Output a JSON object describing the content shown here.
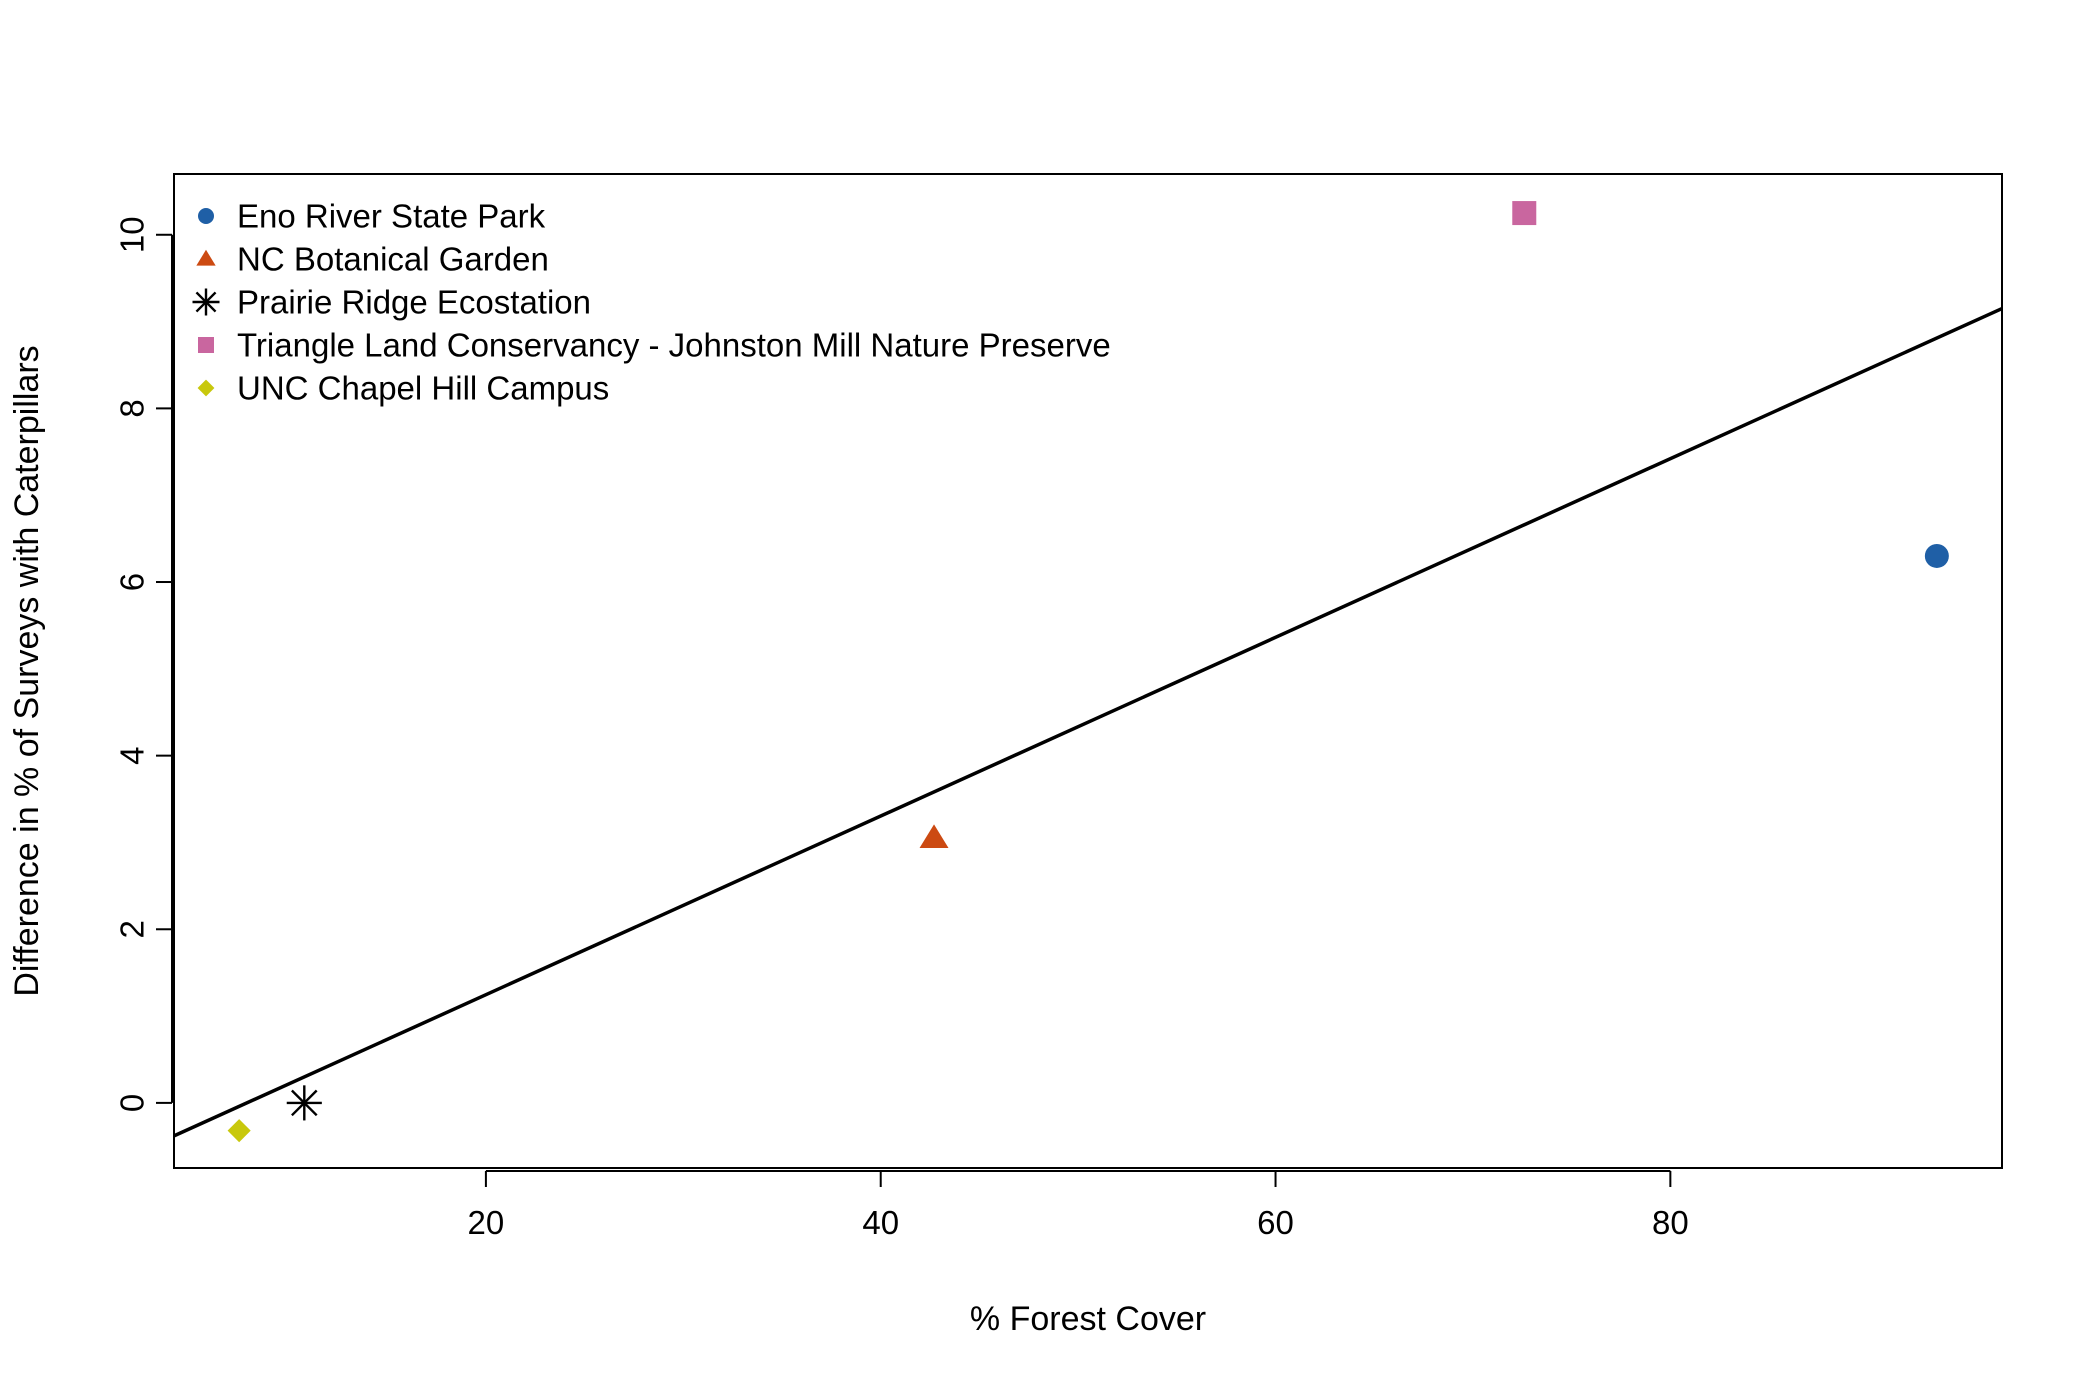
{
  "chart_data": {
    "type": "scatter",
    "xlabel": "% Forest Cover",
    "ylabel": "Difference in  % of Surveys with Caterpillars",
    "xlim": [
      4.2,
      96.8
    ],
    "ylim": [
      -0.75,
      10.7
    ],
    "x_ticks": [
      20,
      40,
      60,
      80
    ],
    "y_ticks": [
      0,
      2,
      4,
      6,
      8,
      10
    ],
    "grid": false,
    "legend_position": "top-left",
    "series": [
      {
        "name": "Eno River State Park",
        "marker": "circle",
        "color": "#1f5fa6",
        "x": [
          93.5
        ],
        "y": [
          6.3
        ]
      },
      {
        "name": "NC Botanical Garden",
        "marker": "triangle",
        "color": "#cc4a12",
        "x": [
          42.7
        ],
        "y": [
          3.05
        ]
      },
      {
        "name": "Prairie Ridge Ecostation",
        "marker": "asterisk",
        "color": "#000000",
        "x": [
          10.8
        ],
        "y": [
          0.0
        ]
      },
      {
        "name": "Triangle Land Conservancy - Johnston Mill Nature Preserve",
        "marker": "square",
        "color": "#c9669f",
        "x": [
          72.6
        ],
        "y": [
          10.25
        ]
      },
      {
        "name": "UNC Chapel Hill Campus",
        "marker": "diamond",
        "color": "#c8c80c",
        "x": [
          7.5
        ],
        "y": [
          -0.32
        ]
      }
    ],
    "regression_line": {
      "x1": 4.2,
      "y1": -0.38,
      "x2": 96.8,
      "y2": 9.15,
      "color": "#000000"
    }
  }
}
